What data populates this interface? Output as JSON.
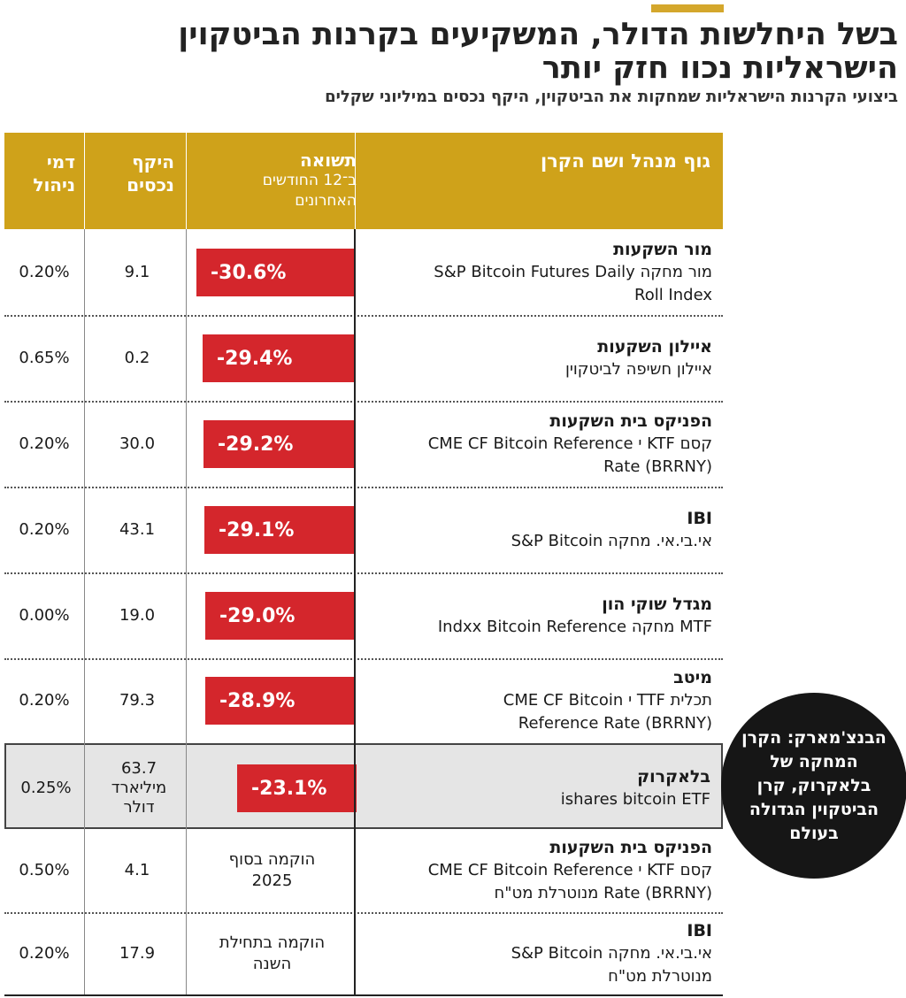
{
  "title_line1": "בשל היחלשות הדולר, המשקיעים בקרנות הביטקוין",
  "title_line2": "הישראליות נכוו חזק יותר",
  "subtitle": "ביצועי הקרנות הישראליות שמחקות את הביטקוין, היקף נכסים במיליוני שקלים",
  "headers": {
    "fund": "גוף מנהל ושם הקרן",
    "return_line1": "תשואה",
    "return_line2": "ב־12 החודשים",
    "return_line3": "האחרונים",
    "aum_line1": "היקף",
    "aum_line2": "נכסים",
    "fee_line1": "דמי",
    "fee_line2": "ניהול"
  },
  "rows": [
    {
      "manager": "מור השקעות",
      "desc1": "מור מחקה S&P Bitcoin Futures Daily",
      "desc2": "Roll Index",
      "return_label": "-30.6%",
      "aum": "9.1",
      "fee": "0.20%"
    },
    {
      "manager": "איילון השקעות",
      "desc1": "איילון חשיפה לביטקוין",
      "desc2": "",
      "return_label": "-29.4%",
      "aum": "0.2",
      "fee": "0.65%"
    },
    {
      "manager": "הפניקס בית השקעות",
      "desc1": "קסם KTF י CME CF Bitcoin Reference",
      "desc2": "Rate (BRRNY)",
      "return_label": "-29.2%",
      "aum": "30.0",
      "fee": "0.20%"
    },
    {
      "manager": "IBI",
      "desc1": "אי.בי.אי. מחקה S&P Bitcoin",
      "desc2": "",
      "return_label": "-29.1%",
      "aum": "43.1",
      "fee": "0.20%"
    },
    {
      "manager": "מגדל שוקי הון",
      "desc1": "MTF מחקה Indxx Bitcoin Reference",
      "desc2": "",
      "return_label": "-29.0%",
      "aum": "19.0",
      "fee": "0.00%"
    },
    {
      "manager": "מיטב",
      "desc1": "תכלית TTF י CME CF Bitcoin",
      "desc2": "Reference Rate (BRRNY)",
      "return_label": "-28.9%",
      "aum": "79.3",
      "fee": "0.20%"
    },
    {
      "manager": "בלאקרוק",
      "desc1": "ishares bitcoin ETF",
      "desc2": "",
      "return_label": "-23.1%",
      "aum_line1": "63.7",
      "aum_line2": "מיליארד",
      "aum_line3": "דולר",
      "fee": "0.25%"
    },
    {
      "manager": "הפניקס בית השקעות",
      "desc1": "קסם KTF י CME CF Bitcoin Reference",
      "desc2": "Rate (BRRNY) מנוטרלת מט\"ח",
      "note_line1": "הוקמה בסוף",
      "note_line2": "2025",
      "aum": "4.1",
      "fee": "0.50%"
    },
    {
      "manager": "IBI",
      "desc1": "אי.בי.אי. מחקה S&P Bitcoin",
      "desc2": "מנוטרלת מט\"ח",
      "note_line1": "הוקמה בתחילת",
      "note_line2": "השנה",
      "aum": "17.9",
      "fee": "0.20%"
    }
  ],
  "callout": "הבנצ'מארק: הקרן המחקה של בלאקרוק, קרן הביטקוין הגדולה בעולם",
  "colors": {
    "accent": "#cfa21a",
    "bar": "#d4262c",
    "highlight": "#e5e5e5",
    "callout": "#161616"
  },
  "chart_data": {
    "type": "bar",
    "categories": [
      "מור מחקה S&P Bitcoin Futures Daily Roll Index",
      "איילון חשיפה לביטקוין",
      "קסם KTF י CME CF Bitcoin Reference Rate (BRRNY)",
      "אי.בי.אי. מחקה S&P Bitcoin",
      "MTF מחקה Indxx Bitcoin Reference",
      "תכלית TTF י CME CF Bitcoin Reference Rate (BRRNY)",
      "ishares bitcoin ETF"
    ],
    "values": [
      -30.6,
      -29.4,
      -29.2,
      -29.1,
      -29.0,
      -28.9,
      -23.1
    ],
    "title": "בשל היחלשות הדולר, המשקיעים בקרנות הביטקוין הישראליות נכוו חזק יותר",
    "xlabel": "",
    "ylabel": "תשואה ב־12 החודשים האחרונים"
  }
}
